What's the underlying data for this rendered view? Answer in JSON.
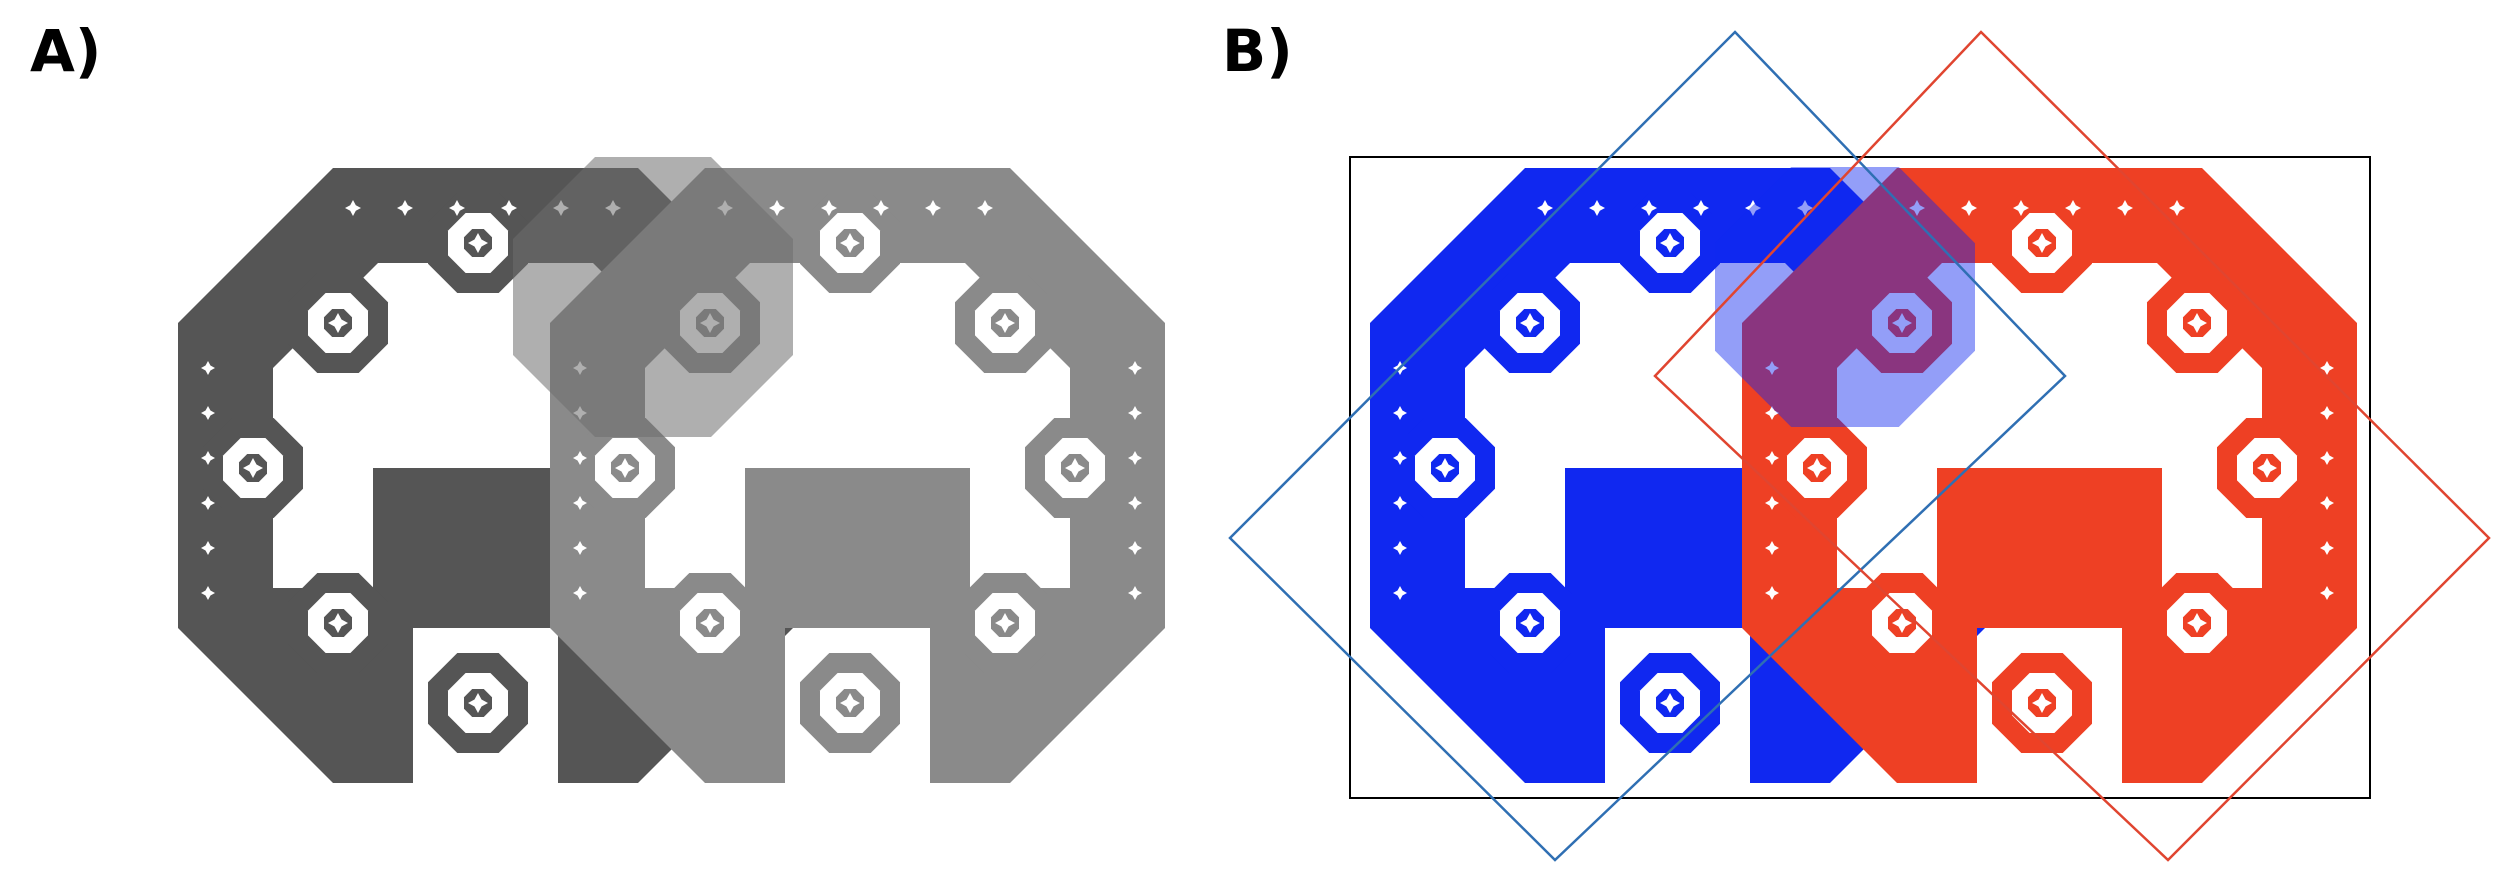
{
  "panels": [
    {
      "label": "A)",
      "colors": {
        "left_tile": "#555555",
        "right_tile": "#8a8a8a",
        "overlap": "#6e6e6e"
      }
    },
    {
      "label": "B)",
      "colors": {
        "left_tile": "#1028f0",
        "right_tile": "#ee4024",
        "frame": "#000000",
        "left_square": "#2f6fb3",
        "right_square": "#e04530"
      }
    }
  ]
}
